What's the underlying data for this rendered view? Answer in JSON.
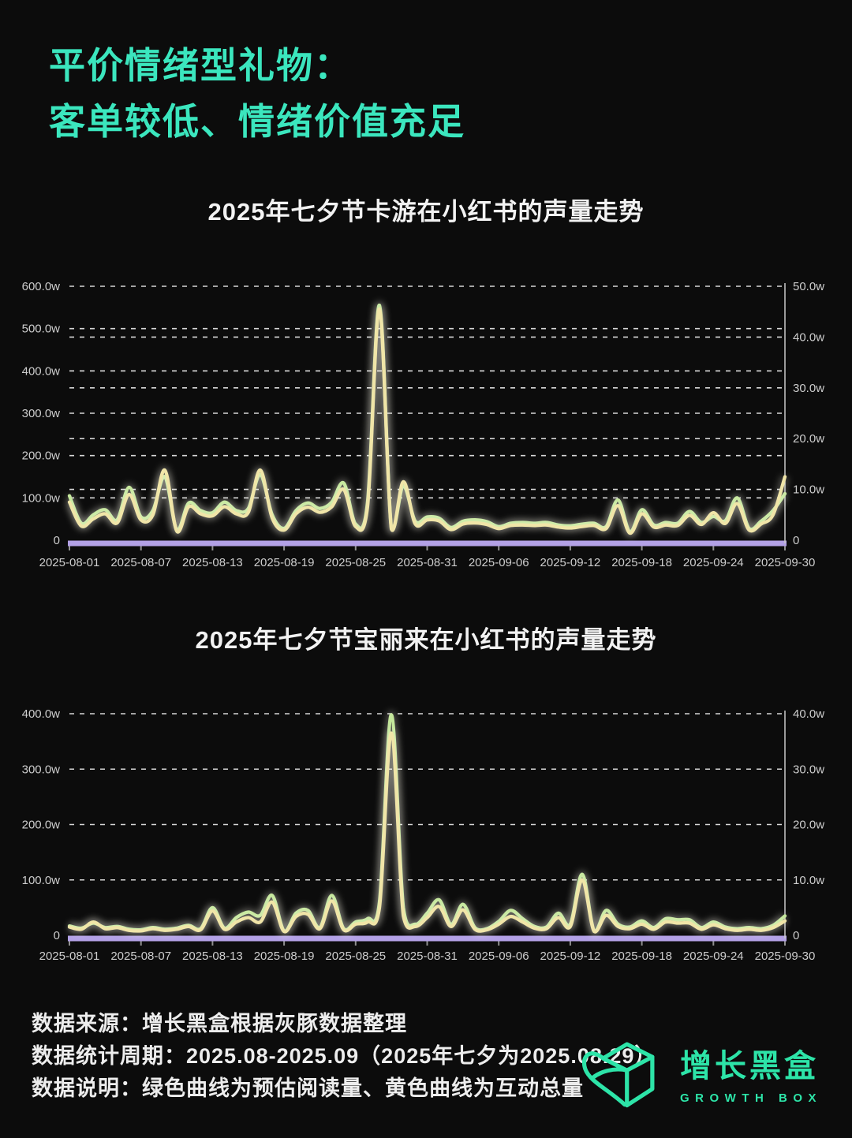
{
  "theme": {
    "accent": "#3BE6BE",
    "logo_green": "#2DE4A8",
    "background": "#0C0C0C",
    "grid_color": "#EDEDED",
    "tick_text_color": "#CDCDCD",
    "baseline_purple": "#B3A1E6",
    "right_axis_line_color": "#C9C9C9"
  },
  "header": {
    "title_line1": "平价情绪型礼物：",
    "title_line2": "客单较低、情绪价值充足"
  },
  "footer": {
    "source": "数据来源：增长黑盒根据灰豚数据整理",
    "period": "数据统计周期：2025.08-2025.09（2025年七夕为2025.08.29）",
    "note": "数据说明：绿色曲线为预估阅读量、黄色曲线为互动总量"
  },
  "logo": {
    "name_cn": "增长黑盒",
    "name_en": "GROWTH BOX",
    "icon": "unfolding-box-icon"
  },
  "chart_data": [
    {
      "type": "line",
      "title": "2025年七夕节卡游在小红书的声量走势",
      "x_range": [
        "2025-08-01",
        "2025-09-30"
      ],
      "x_tick_labels": [
        "2025-08-01",
        "2025-08-07",
        "2025-08-13",
        "2025-08-19",
        "2025-08-25",
        "2025-08-31",
        "2025-09-06",
        "2025-09-12",
        "2025-09-18",
        "2025-09-24",
        "2025-09-30"
      ],
      "left_axis": {
        "ticks": [
          "600.0w",
          "500.0w",
          "400.0w",
          "300.0w",
          "200.0w",
          "100.0w",
          "0"
        ],
        "max": 600,
        "unit": "w"
      },
      "right_axis": {
        "ticks": [
          "50.0w",
          "40.0w",
          "30.0w",
          "20.0w",
          "10.0w",
          "0"
        ],
        "max": 50,
        "unit": "w"
      },
      "grid": "dashed",
      "legend_position": "none",
      "series": [
        {
          "name": "预估阅读量",
          "axis": "left",
          "color": "#C4E79B",
          "values": [
            105,
            40,
            60,
            72,
            48,
            125,
            55,
            70,
            150,
            25,
            88,
            70,
            65,
            90,
            70,
            75,
            155,
            60,
            28,
            70,
            88,
            75,
            90,
            135,
            38,
            90,
            555,
            30,
            128,
            45,
            55,
            52,
            30,
            45,
            48,
            44,
            32,
            40,
            42,
            40,
            42,
            36,
            34,
            38,
            40,
            32,
            95,
            20,
            72,
            36,
            42,
            40,
            68,
            42,
            56,
            46,
            100,
            28,
            45,
            70,
            110
          ]
        },
        {
          "name": "互动总量",
          "axis": "right",
          "color": "#F0E5A8",
          "values": [
            7.5,
            2.8,
            4.2,
            5.2,
            3.4,
            9,
            4,
            5,
            13.8,
            1.8,
            6.6,
            5.2,
            4.8,
            6.6,
            5.2,
            5.5,
            13.8,
            4.4,
            2,
            5.2,
            6.5,
            5.5,
            6.6,
            10,
            2.7,
            6.6,
            45.5,
            2.2,
            11.5,
            3.2,
            4,
            3.8,
            2.1,
            3.2,
            3.4,
            3.1,
            2.3,
            2.9,
            3,
            2.9,
            3,
            2.6,
            2.4,
            2.7,
            2.9,
            2.3,
            6.8,
            1.4,
            5.2,
            2.6,
            3,
            2.9,
            4.9,
            3.1,
            5.4,
            3.3,
            7.2,
            2,
            3.2,
            5,
            12.5
          ]
        }
      ]
    },
    {
      "type": "line",
      "title": "2025年七夕节宝丽来在小红书的声量走势",
      "x_range": [
        "2025-08-01",
        "2025-09-30"
      ],
      "x_tick_labels": [
        "2025-08-01",
        "2025-08-07",
        "2025-08-13",
        "2025-08-19",
        "2025-08-25",
        "2025-08-31",
        "2025-09-06",
        "2025-09-12",
        "2025-09-18",
        "2025-09-24",
        "2025-09-30"
      ],
      "left_axis": {
        "ticks": [
          "400.0w",
          "300.0w",
          "200.0w",
          "100.0w",
          "0"
        ],
        "max": 400,
        "unit": "w"
      },
      "right_axis": {
        "ticks": [
          "40.0w",
          "30.0w",
          "20.0w",
          "10.0w",
          "0"
        ],
        "max": 40,
        "unit": "w"
      },
      "grid": "dashed",
      "legend_position": "none",
      "series": [
        {
          "name": "预估阅读量",
          "axis": "left",
          "color": "#C4E79B",
          "values": [
            17,
            13,
            22,
            14,
            16,
            11,
            10,
            14,
            11,
            13,
            18,
            12,
            50,
            13,
            32,
            42,
            36,
            72,
            8,
            40,
            45,
            14,
            72,
            12,
            24,
            30,
            60,
            398,
            50,
            20,
            40,
            64,
            20,
            56,
            14,
            12,
            25,
            45,
            30,
            16,
            15,
            40,
            20,
            110,
            8,
            45,
            20,
            15,
            26,
            14,
            30,
            28,
            28,
            14,
            24,
            15,
            12,
            14,
            12,
            18,
            35
          ]
        },
        {
          "name": "互动总量",
          "axis": "right",
          "color": "#F0E5A8",
          "values": [
            1.5,
            1.1,
            2.4,
            1.2,
            1.4,
            0.9,
            0.8,
            1.2,
            0.9,
            1.1,
            1.6,
            1.0,
            4.4,
            1.1,
            2.4,
            3.2,
            2.4,
            6.0,
            0.7,
            3.4,
            3.8,
            1.2,
            6.2,
            1.0,
            2.0,
            2.4,
            5.0,
            36.5,
            3.5,
            1.6,
            3.2,
            5.2,
            1.6,
            4.6,
            1.1,
            1.0,
            2.0,
            3.4,
            2.4,
            1.3,
            1.2,
            3.2,
            1.6,
            10.0,
            0.7,
            3.6,
            1.6,
            1.2,
            2.0,
            1.1,
            2.4,
            2.2,
            2.2,
            1.1,
            1.9,
            1.2,
            0.9,
            1.1,
            0.9,
            1.4,
            2.6
          ]
        }
      ]
    }
  ]
}
